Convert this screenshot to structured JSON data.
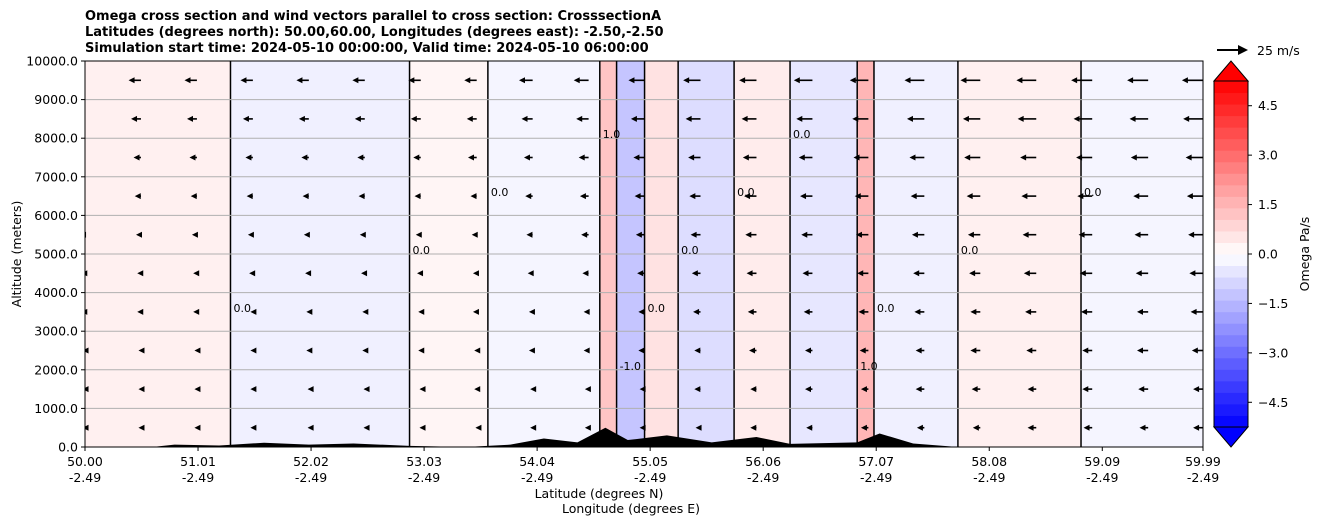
{
  "chart_data": {
    "type": "heatmap",
    "title_lines": [
      "Omega cross section and wind vectors parallel to cross section: CrosssectionA",
      "Latitudes (degrees north): 50.00,60.00, Longitudes (degrees east): -2.50,-2.50",
      "Simulation start time: 2024-05-10 00:00:00, Valid time: 2024-05-10 06:00:00"
    ],
    "ylabel": "Altitude (meters)",
    "xlabel_line1": "Latitude (degrees N)",
    "xlabel_line2": "Longitude (degrees E)",
    "ylim": [
      0,
      10000
    ],
    "yticks": [
      "0.0",
      "1000.0",
      "2000.0",
      "3000.0",
      "4000.0",
      "5000.0",
      "6000.0",
      "7000.0",
      "8000.0",
      "9000.0",
      "10000.0"
    ],
    "xticks_lat": [
      "50.00",
      "51.01",
      "52.02",
      "53.03",
      "54.04",
      "55.05",
      "56.06",
      "57.07",
      "58.08",
      "59.09",
      "59.99"
    ],
    "xticks_lon": [
      "-2.49",
      "-2.49",
      "-2.49",
      "-2.49",
      "-2.49",
      "-2.49",
      "-2.49",
      "-2.49",
      "-2.49",
      "-2.49",
      "-2.49"
    ],
    "xlim": [
      50.0,
      59.99
    ],
    "colorbar": {
      "label": "Omega Pa/s",
      "range": [
        -5.25,
        5.25
      ],
      "ticks": [
        "−4.5",
        "−3.0",
        "−1.5",
        "0.0",
        "1.5",
        "3.0",
        "4.5"
      ],
      "tick_values": [
        -4.5,
        -3.0,
        -1.5,
        0.0,
        1.5,
        3.0,
        4.5
      ],
      "extend": "both"
    },
    "quiver_key": {
      "label": "25 m/s",
      "speed": 25
    },
    "contour_labels": [
      "0.0",
      "1.0",
      "-1.0"
    ],
    "omega_regions": [
      {
        "lat_start": 50.0,
        "lat_end": 51.3,
        "alt_start": 0,
        "alt_end": 10000,
        "omega": 0.3
      },
      {
        "lat_start": 51.3,
        "lat_end": 52.9,
        "alt_start": 0,
        "alt_end": 10000,
        "omega": -0.3
      },
      {
        "lat_start": 52.9,
        "lat_end": 53.6,
        "alt_start": 0,
        "alt_end": 10000,
        "omega": 0.2
      },
      {
        "lat_start": 53.6,
        "lat_end": 54.6,
        "alt_start": 0,
        "alt_end": 10000,
        "omega": -0.2
      },
      {
        "lat_start": 54.6,
        "lat_end": 54.75,
        "alt_start": 0,
        "alt_end": 10000,
        "omega": 1.2
      },
      {
        "lat_start": 54.75,
        "lat_end": 55.0,
        "alt_start": 0,
        "alt_end": 10000,
        "omega": -1.2
      },
      {
        "lat_start": 55.0,
        "lat_end": 55.3,
        "alt_start": 0,
        "alt_end": 10000,
        "omega": 0.6
      },
      {
        "lat_start": 55.3,
        "lat_end": 55.8,
        "alt_start": 0,
        "alt_end": 10000,
        "omega": -0.7
      },
      {
        "lat_start": 55.8,
        "lat_end": 56.3,
        "alt_start": 0,
        "alt_end": 10000,
        "omega": 0.4
      },
      {
        "lat_start": 56.3,
        "lat_end": 56.9,
        "alt_start": 0,
        "alt_end": 10000,
        "omega": -0.5
      },
      {
        "lat_start": 56.9,
        "lat_end": 57.05,
        "alt_start": 0,
        "alt_end": 10000,
        "omega": 1.5
      },
      {
        "lat_start": 57.05,
        "lat_end": 57.8,
        "alt_start": 0,
        "alt_end": 10000,
        "omega": -0.3
      },
      {
        "lat_start": 57.8,
        "lat_end": 58.9,
        "alt_start": 0,
        "alt_end": 10000,
        "omega": 0.3
      },
      {
        "lat_start": 58.9,
        "lat_end": 59.99,
        "alt_start": 0,
        "alt_end": 10000,
        "omega": -0.2
      }
    ],
    "wind": {
      "lat_columns": [
        50.0,
        50.5,
        51.0,
        51.5,
        52.0,
        52.5,
        53.0,
        53.5,
        54.0,
        54.5,
        55.0,
        55.5,
        56.0,
        56.5,
        57.0,
        57.5,
        58.0,
        58.5,
        59.0,
        59.5,
        59.99
      ],
      "alt_levels": [
        500,
        1500,
        2500,
        3500,
        4500,
        5500,
        6500,
        7500,
        8500,
        9500
      ],
      "speed_m_s": [
        [
          -2,
          -2,
          -2,
          -3,
          -3,
          -4,
          -5,
          -6,
          -8,
          -10
        ],
        [
          -2,
          -2,
          -2,
          -3,
          -3,
          -4,
          -5,
          -6,
          -8,
          -10
        ],
        [
          -2,
          -2,
          -2,
          -3,
          -3,
          -4,
          -5,
          -6,
          -8,
          -10
        ],
        [
          -2,
          -2,
          -2,
          -2,
          -3,
          -4,
          -5,
          -6,
          -8,
          -10
        ],
        [
          -1,
          -1,
          -2,
          -2,
          -3,
          -4,
          -5,
          -6,
          -8,
          -10
        ],
        [
          -1,
          -1,
          -2,
          -2,
          -3,
          -4,
          -5,
          -6,
          -8,
          -10
        ],
        [
          -1,
          -1,
          -2,
          -2,
          -3,
          -4,
          -5,
          -6,
          -8,
          -10
        ],
        [
          -1,
          -2,
          -2,
          -3,
          -3,
          -4,
          -5,
          -7,
          -8,
          -10
        ],
        [
          -2,
          -2,
          -3,
          -3,
          -4,
          -5,
          -6,
          -7,
          -9,
          -11
        ],
        [
          -3,
          -3,
          -4,
          -4,
          -5,
          -6,
          -7,
          -8,
          -10,
          -12
        ],
        [
          -4,
          -4,
          -5,
          -5,
          -6,
          -7,
          -8,
          -9,
          -11,
          -13
        ],
        [
          -4,
          -5,
          -5,
          -6,
          -7,
          -8,
          -9,
          -10,
          -12,
          -14
        ],
        [
          -5,
          -5,
          -6,
          -7,
          -8,
          -9,
          -10,
          -11,
          -12,
          -14
        ],
        [
          -5,
          -6,
          -6,
          -7,
          -8,
          -9,
          -10,
          -11,
          -13,
          -15
        ],
        [
          -6,
          -6,
          -7,
          -8,
          -9,
          -10,
          -11,
          -12,
          -13,
          -15
        ],
        [
          -6,
          -7,
          -7,
          -8,
          -9,
          -10,
          -11,
          -12,
          -14,
          -16
        ],
        [
          -6,
          -7,
          -8,
          -8,
          -9,
          -10,
          -11,
          -13,
          -14,
          -16
        ],
        [
          -7,
          -7,
          -8,
          -9,
          -10,
          -11,
          -12,
          -13,
          -15,
          -16
        ],
        [
          -7,
          -8,
          -8,
          -9,
          -10,
          -11,
          -12,
          -13,
          -15,
          -17
        ],
        [
          -7,
          -8,
          -9,
          -9,
          -10,
          -11,
          -12,
          -14,
          -15,
          -17
        ],
        [
          -8,
          -8,
          -9,
          -10,
          -11,
          -12,
          -13,
          -14,
          -16,
          -17
        ]
      ]
    },
    "terrain": [
      {
        "lat": 50.0,
        "alt": 0
      },
      {
        "lat": 50.6,
        "alt": 0
      },
      {
        "lat": 50.8,
        "alt": 60
      },
      {
        "lat": 51.2,
        "alt": 40
      },
      {
        "lat": 51.6,
        "alt": 110
      },
      {
        "lat": 52.0,
        "alt": 60
      },
      {
        "lat": 52.4,
        "alt": 90
      },
      {
        "lat": 52.9,
        "alt": 30
      },
      {
        "lat": 53.4,
        "alt": 0
      },
      {
        "lat": 53.8,
        "alt": 60
      },
      {
        "lat": 54.1,
        "alt": 220
      },
      {
        "lat": 54.4,
        "alt": 120
      },
      {
        "lat": 54.65,
        "alt": 500
      },
      {
        "lat": 54.85,
        "alt": 180
      },
      {
        "lat": 55.2,
        "alt": 300
      },
      {
        "lat": 55.6,
        "alt": 120
      },
      {
        "lat": 56.0,
        "alt": 260
      },
      {
        "lat": 56.3,
        "alt": 80
      },
      {
        "lat": 56.9,
        "alt": 120
      },
      {
        "lat": 57.1,
        "alt": 350
      },
      {
        "lat": 57.4,
        "alt": 90
      },
      {
        "lat": 57.8,
        "alt": 0
      },
      {
        "lat": 59.99,
        "alt": 0
      }
    ]
  }
}
